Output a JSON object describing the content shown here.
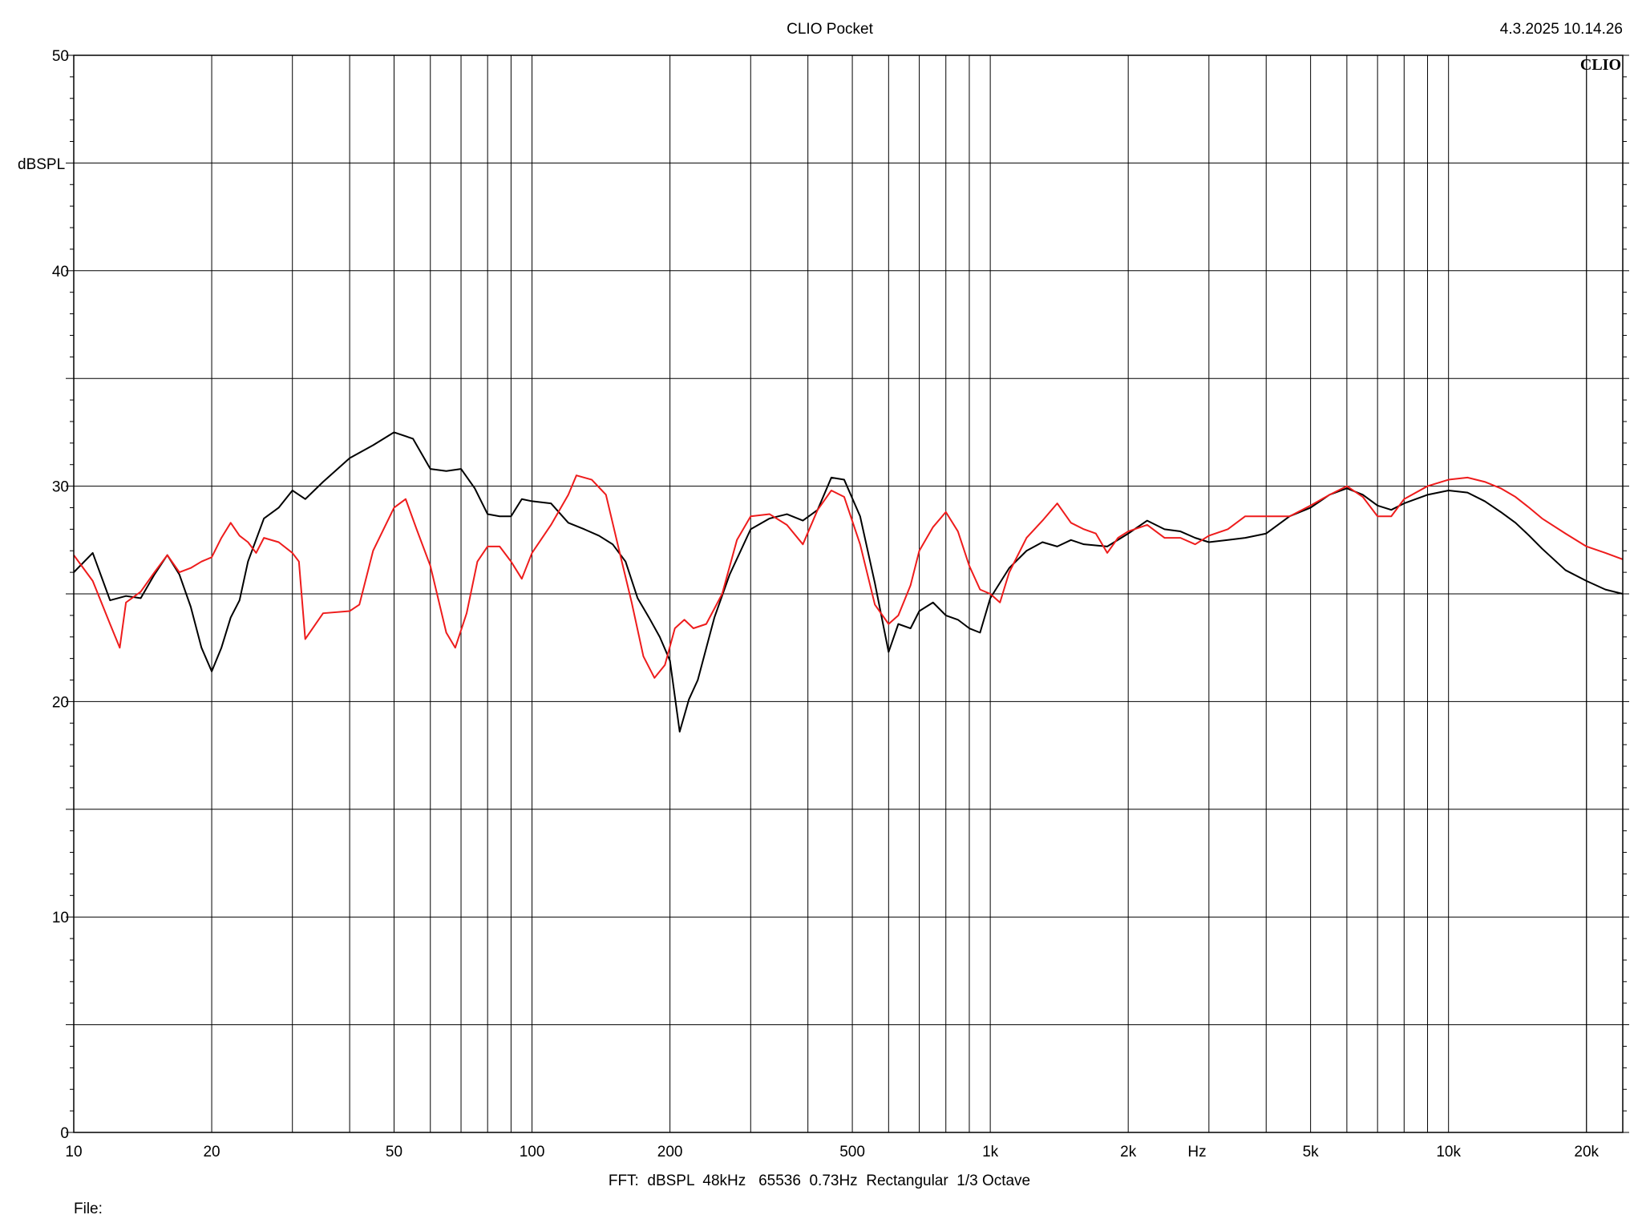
{
  "header": {
    "title": "CLIO Pocket",
    "timestamp": "4.3.2025 10.14.26",
    "logo": "CLIO"
  },
  "footer": {
    "settings": "FFT:  dBSPL  48kHz   65536  0.73Hz  Rectangular  1/3 Octave",
    "file_label": "File:"
  },
  "colors": {
    "background": "#ffffff",
    "grid": "#000000",
    "series_black": "#000000",
    "series_red": "#ee1c1c"
  },
  "chart_data": {
    "type": "line",
    "ylabel": "dBSPL",
    "xlabel": "Hz",
    "xscale": "log",
    "xlim": [
      10,
      24000
    ],
    "ylim": [
      0,
      50
    ],
    "grid": true,
    "x_ticks": [
      {
        "value": 10,
        "label": "10"
      },
      {
        "value": 20,
        "label": "20"
      },
      {
        "value": 50,
        "label": "50"
      },
      {
        "value": 100,
        "label": "100"
      },
      {
        "value": 200,
        "label": "200"
      },
      {
        "value": 500,
        "label": "500"
      },
      {
        "value": 1000,
        "label": "1k"
      },
      {
        "value": 2000,
        "label": "2k"
      },
      {
        "value": 5000,
        "label": "5k"
      },
      {
        "value": 10000,
        "label": "10k"
      },
      {
        "value": 20000,
        "label": "20k"
      }
    ],
    "y_ticks": [
      {
        "value": 0,
        "label": "0"
      },
      {
        "value": 10,
        "label": "10"
      },
      {
        "value": 20,
        "label": "20"
      },
      {
        "value": 30,
        "label": "30"
      },
      {
        "value": 40,
        "label": "40"
      },
      {
        "value": 50,
        "label": "50"
      }
    ],
    "series": [
      {
        "color": "#000000",
        "points": [
          [
            10,
            26.0
          ],
          [
            11,
            26.9
          ],
          [
            12,
            24.7
          ],
          [
            13,
            24.9
          ],
          [
            14,
            24.8
          ],
          [
            15,
            25.9
          ],
          [
            16,
            26.8
          ],
          [
            17,
            25.9
          ],
          [
            18,
            24.4
          ],
          [
            19,
            22.5
          ],
          [
            20,
            21.4
          ],
          [
            21,
            22.5
          ],
          [
            22,
            23.9
          ],
          [
            23,
            24.7
          ],
          [
            24,
            26.5
          ],
          [
            26,
            28.5
          ],
          [
            28,
            29.0
          ],
          [
            30,
            29.8
          ],
          [
            32,
            29.4
          ],
          [
            35,
            30.2
          ],
          [
            40,
            31.3
          ],
          [
            45,
            31.9
          ],
          [
            50,
            32.5
          ],
          [
            55,
            32.2
          ],
          [
            60,
            30.8
          ],
          [
            65,
            30.7
          ],
          [
            70,
            30.8
          ],
          [
            75,
            29.9
          ],
          [
            80,
            28.7
          ],
          [
            85,
            28.6
          ],
          [
            90,
            28.6
          ],
          [
            95,
            29.4
          ],
          [
            100,
            29.3
          ],
          [
            110,
            29.2
          ],
          [
            120,
            28.3
          ],
          [
            130,
            28.0
          ],
          [
            140,
            27.7
          ],
          [
            150,
            27.3
          ],
          [
            160,
            26.5
          ],
          [
            170,
            24.8
          ],
          [
            180,
            23.9
          ],
          [
            190,
            23.0
          ],
          [
            200,
            21.9
          ],
          [
            210,
            18.6
          ],
          [
            220,
            20.1
          ],
          [
            230,
            21.0
          ],
          [
            250,
            23.9
          ],
          [
            270,
            25.9
          ],
          [
            300,
            28.0
          ],
          [
            330,
            28.5
          ],
          [
            360,
            28.7
          ],
          [
            390,
            28.4
          ],
          [
            420,
            28.9
          ],
          [
            450,
            30.4
          ],
          [
            480,
            30.3
          ],
          [
            520,
            28.6
          ],
          [
            560,
            25.5
          ],
          [
            600,
            22.3
          ],
          [
            630,
            23.6
          ],
          [
            670,
            23.4
          ],
          [
            700,
            24.2
          ],
          [
            750,
            24.6
          ],
          [
            800,
            24.0
          ],
          [
            850,
            23.8
          ],
          [
            900,
            23.4
          ],
          [
            950,
            23.2
          ],
          [
            1000,
            24.8
          ],
          [
            1100,
            26.2
          ],
          [
            1200,
            27.0
          ],
          [
            1300,
            27.4
          ],
          [
            1400,
            27.2
          ],
          [
            1500,
            27.5
          ],
          [
            1600,
            27.3
          ],
          [
            1800,
            27.2
          ],
          [
            2000,
            27.8
          ],
          [
            2200,
            28.4
          ],
          [
            2400,
            28.0
          ],
          [
            2600,
            27.9
          ],
          [
            2800,
            27.6
          ],
          [
            3000,
            27.4
          ],
          [
            3300,
            27.5
          ],
          [
            3600,
            27.6
          ],
          [
            4000,
            27.8
          ],
          [
            4500,
            28.6
          ],
          [
            5000,
            29.0
          ],
          [
            5500,
            29.6
          ],
          [
            6000,
            29.9
          ],
          [
            6500,
            29.6
          ],
          [
            7000,
            29.1
          ],
          [
            7500,
            28.9
          ],
          [
            8000,
            29.2
          ],
          [
            9000,
            29.6
          ],
          [
            10000,
            29.8
          ],
          [
            11000,
            29.7
          ],
          [
            12000,
            29.3
          ],
          [
            13000,
            28.8
          ],
          [
            14000,
            28.3
          ],
          [
            15000,
            27.7
          ],
          [
            16000,
            27.1
          ],
          [
            18000,
            26.1
          ],
          [
            20000,
            25.6
          ],
          [
            22000,
            25.2
          ],
          [
            24000,
            25.0
          ]
        ]
      },
      {
        "color": "#ee1c1c",
        "points": [
          [
            10,
            26.8
          ],
          [
            11,
            25.6
          ],
          [
            12,
            23.6
          ],
          [
            12.6,
            22.5
          ],
          [
            13,
            24.6
          ],
          [
            14,
            25.1
          ],
          [
            15,
            26.0
          ],
          [
            16,
            26.8
          ],
          [
            17,
            26.0
          ],
          [
            18,
            26.2
          ],
          [
            19,
            26.5
          ],
          [
            20,
            26.7
          ],
          [
            21,
            27.6
          ],
          [
            22,
            28.3
          ],
          [
            23,
            27.7
          ],
          [
            24,
            27.4
          ],
          [
            25,
            26.9
          ],
          [
            26,
            27.6
          ],
          [
            28,
            27.4
          ],
          [
            30,
            26.9
          ],
          [
            31,
            26.5
          ],
          [
            32,
            22.9
          ],
          [
            35,
            24.1
          ],
          [
            40,
            24.2
          ],
          [
            42,
            24.5
          ],
          [
            45,
            27.0
          ],
          [
            50,
            29.0
          ],
          [
            53,
            29.4
          ],
          [
            56,
            28.0
          ],
          [
            60,
            26.3
          ],
          [
            65,
            23.2
          ],
          [
            68,
            22.5
          ],
          [
            72,
            24.1
          ],
          [
            76,
            26.5
          ],
          [
            80,
            27.2
          ],
          [
            85,
            27.2
          ],
          [
            90,
            26.5
          ],
          [
            95,
            25.7
          ],
          [
            100,
            26.9
          ],
          [
            110,
            28.2
          ],
          [
            120,
            29.6
          ],
          [
            125,
            30.5
          ],
          [
            135,
            30.3
          ],
          [
            145,
            29.6
          ],
          [
            155,
            27.0
          ],
          [
            165,
            24.6
          ],
          [
            175,
            22.1
          ],
          [
            185,
            21.1
          ],
          [
            195,
            21.7
          ],
          [
            205,
            23.4
          ],
          [
            215,
            23.8
          ],
          [
            225,
            23.4
          ],
          [
            240,
            23.6
          ],
          [
            260,
            25.0
          ],
          [
            280,
            27.5
          ],
          [
            300,
            28.6
          ],
          [
            330,
            28.7
          ],
          [
            360,
            28.2
          ],
          [
            390,
            27.3
          ],
          [
            420,
            28.9
          ],
          [
            450,
            29.8
          ],
          [
            480,
            29.5
          ],
          [
            520,
            27.3
          ],
          [
            560,
            24.5
          ],
          [
            600,
            23.6
          ],
          [
            630,
            24.0
          ],
          [
            670,
            25.4
          ],
          [
            700,
            27.0
          ],
          [
            750,
            28.1
          ],
          [
            800,
            28.8
          ],
          [
            850,
            27.9
          ],
          [
            900,
            26.3
          ],
          [
            950,
            25.2
          ],
          [
            1000,
            25.0
          ],
          [
            1050,
            24.6
          ],
          [
            1100,
            26.0
          ],
          [
            1200,
            27.6
          ],
          [
            1300,
            28.4
          ],
          [
            1400,
            29.2
          ],
          [
            1500,
            28.3
          ],
          [
            1600,
            28.0
          ],
          [
            1700,
            27.8
          ],
          [
            1800,
            26.9
          ],
          [
            1900,
            27.6
          ],
          [
            2000,
            27.9
          ],
          [
            2200,
            28.2
          ],
          [
            2400,
            27.6
          ],
          [
            2600,
            27.6
          ],
          [
            2800,
            27.3
          ],
          [
            3000,
            27.7
          ],
          [
            3300,
            28.0
          ],
          [
            3600,
            28.6
          ],
          [
            4000,
            28.6
          ],
          [
            4500,
            28.6
          ],
          [
            5000,
            29.1
          ],
          [
            5500,
            29.6
          ],
          [
            6000,
            30.0
          ],
          [
            6500,
            29.5
          ],
          [
            7000,
            28.6
          ],
          [
            7500,
            28.6
          ],
          [
            8000,
            29.4
          ],
          [
            9000,
            30.0
          ],
          [
            10000,
            30.3
          ],
          [
            11000,
            30.4
          ],
          [
            12000,
            30.2
          ],
          [
            13000,
            29.9
          ],
          [
            14000,
            29.5
          ],
          [
            15000,
            29.0
          ],
          [
            16000,
            28.5
          ],
          [
            18000,
            27.8
          ],
          [
            20000,
            27.2
          ],
          [
            22000,
            26.9
          ],
          [
            24000,
            26.6
          ]
        ]
      }
    ]
  }
}
